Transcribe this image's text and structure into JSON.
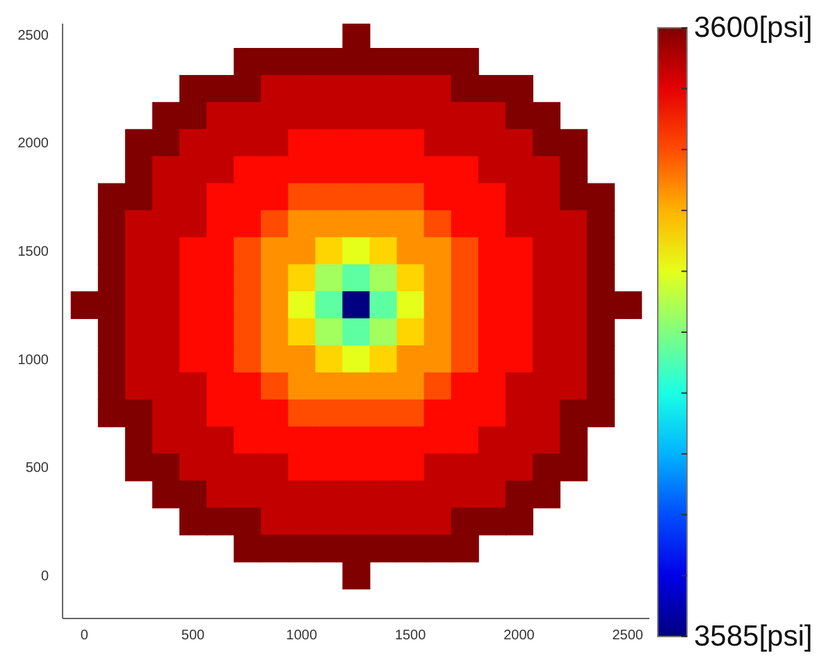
{
  "chart_data": {
    "type": "heatmap",
    "x": [
      0,
      125,
      250,
      375,
      500,
      625,
      750,
      875,
      1000,
      1125,
      1250,
      1375,
      1500,
      1625,
      1750,
      1875,
      2000,
      2125,
      2250,
      2375,
      2500
    ],
    "y": [
      2500,
      2375,
      2250,
      2125,
      2000,
      1875,
      1750,
      1625,
      1500,
      1375,
      1250,
      1125,
      1000,
      875,
      750,
      625,
      500,
      375,
      250,
      125,
      0
    ],
    "xlim": [
      -100,
      2600
    ],
    "xticks": [
      0,
      500,
      1000,
      1500,
      2000,
      2500
    ],
    "ylim": [
      -200,
      2550
    ],
    "yticks": [
      0,
      500,
      1000,
      1500,
      2000,
      2500
    ],
    "clim": [
      3585,
      3600
    ],
    "cticks": [
      {
        "value": 3585,
        "label": "3585[psi]"
      },
      {
        "value": 3586.5,
        "label": null
      },
      {
        "value": 3588,
        "label": null
      },
      {
        "value": 3589.5,
        "label": null
      },
      {
        "value": 3591,
        "label": null
      },
      {
        "value": 3592.5,
        "label": null
      },
      {
        "value": 3594,
        "label": null
      },
      {
        "value": 3595.5,
        "label": null
      },
      {
        "value": 3597,
        "label": null
      },
      {
        "value": 3598.5,
        "label": null
      },
      {
        "value": 3600,
        "label": "3600[psi]"
      }
    ],
    "grid": false,
    "cells": [
      [
        null,
        null,
        null,
        null,
        null,
        null,
        null,
        null,
        null,
        null,
        3600,
        null,
        null,
        null,
        null,
        null,
        null,
        null,
        null,
        null,
        null
      ],
      [
        null,
        null,
        null,
        null,
        null,
        null,
        3600,
        3600,
        3600,
        3600,
        3600,
        3600,
        3600,
        3600,
        3600,
        null,
        null,
        null,
        null,
        null,
        null
      ],
      [
        null,
        null,
        null,
        null,
        3600,
        3600,
        3600,
        3599,
        3599,
        3599,
        3599,
        3599,
        3599,
        3599,
        3600,
        3600,
        3600,
        null,
        null,
        null,
        null
      ],
      [
        null,
        null,
        null,
        3600,
        3600,
        3599,
        3599,
        3599,
        3599,
        3599,
        3599,
        3599,
        3599,
        3599,
        3599,
        3599,
        3600,
        3600,
        null,
        null,
        null
      ],
      [
        null,
        null,
        3600,
        3600,
        3599,
        3599,
        3599,
        3599,
        3598,
        3598,
        3598,
        3598,
        3598,
        3599,
        3599,
        3599,
        3599,
        3600,
        3600,
        null,
        null
      ],
      [
        null,
        null,
        3600,
        3599,
        3599,
        3599,
        3598,
        3598,
        3598,
        3598,
        3598,
        3598,
        3598,
        3598,
        3598,
        3599,
        3599,
        3599,
        3600,
        null,
        null
      ],
      [
        null,
        3600,
        3600,
        3599,
        3599,
        3598,
        3598,
        3598,
        3597,
        3597,
        3597,
        3597,
        3597,
        3598,
        3598,
        3598,
        3599,
        3599,
        3600,
        3600,
        null
      ],
      [
        null,
        3600,
        3599,
        3599,
        3599,
        3598,
        3598,
        3597,
        3596,
        3596,
        3596,
        3596,
        3596,
        3597,
        3598,
        3598,
        3599,
        3599,
        3599,
        3600,
        null
      ],
      [
        null,
        3600,
        3599,
        3599,
        3598,
        3598,
        3597,
        3596,
        3596,
        3595,
        3594,
        3595,
        3596,
        3596,
        3597,
        3598,
        3598,
        3599,
        3599,
        3600,
        null
      ],
      [
        null,
        3600,
        3599,
        3599,
        3598,
        3598,
        3597,
        3596,
        3595,
        3593,
        3592,
        3593,
        3595,
        3596,
        3597,
        3598,
        3598,
        3599,
        3599,
        3600,
        null
      ],
      [
        3600,
        3600,
        3599,
        3599,
        3598,
        3598,
        3597,
        3596,
        3594,
        3592,
        3585,
        3592,
        3594,
        3596,
        3597,
        3598,
        3598,
        3599,
        3599,
        3600,
        3600
      ],
      [
        null,
        3600,
        3599,
        3599,
        3598,
        3598,
        3597,
        3596,
        3595,
        3593,
        3592,
        3593,
        3595,
        3596,
        3597,
        3598,
        3598,
        3599,
        3599,
        3600,
        null
      ],
      [
        null,
        3600,
        3599,
        3599,
        3598,
        3598,
        3597,
        3596,
        3596,
        3595,
        3594,
        3595,
        3596,
        3596,
        3597,
        3598,
        3598,
        3599,
        3599,
        3600,
        null
      ],
      [
        null,
        3600,
        3599,
        3599,
        3599,
        3598,
        3598,
        3597,
        3596,
        3596,
        3596,
        3596,
        3596,
        3597,
        3598,
        3598,
        3599,
        3599,
        3599,
        3600,
        null
      ],
      [
        null,
        3600,
        3600,
        3599,
        3599,
        3598,
        3598,
        3598,
        3597,
        3597,
        3597,
        3597,
        3597,
        3598,
        3598,
        3598,
        3599,
        3599,
        3600,
        3600,
        null
      ],
      [
        null,
        null,
        3600,
        3599,
        3599,
        3599,
        3598,
        3598,
        3598,
        3598,
        3598,
        3598,
        3598,
        3598,
        3598,
        3599,
        3599,
        3599,
        3600,
        null,
        null
      ],
      [
        null,
        null,
        3600,
        3600,
        3599,
        3599,
        3599,
        3599,
        3598,
        3598,
        3598,
        3598,
        3598,
        3599,
        3599,
        3599,
        3599,
        3600,
        3600,
        null,
        null
      ],
      [
        null,
        null,
        null,
        3600,
        3600,
        3599,
        3599,
        3599,
        3599,
        3599,
        3599,
        3599,
        3599,
        3599,
        3599,
        3599,
        3600,
        3600,
        null,
        null,
        null
      ],
      [
        null,
        null,
        null,
        null,
        3600,
        3600,
        3600,
        3599,
        3599,
        3599,
        3599,
        3599,
        3599,
        3599,
        3600,
        3600,
        3600,
        null,
        null,
        null,
        null
      ],
      [
        null,
        null,
        null,
        null,
        null,
        null,
        3600,
        3600,
        3600,
        3600,
        3600,
        3600,
        3600,
        3600,
        3600,
        null,
        null,
        null,
        null,
        null,
        null
      ],
      [
        null,
        null,
        null,
        null,
        null,
        null,
        null,
        null,
        null,
        null,
        3600,
        null,
        null,
        null,
        null,
        null,
        null,
        null,
        null,
        null,
        null
      ]
    ]
  }
}
